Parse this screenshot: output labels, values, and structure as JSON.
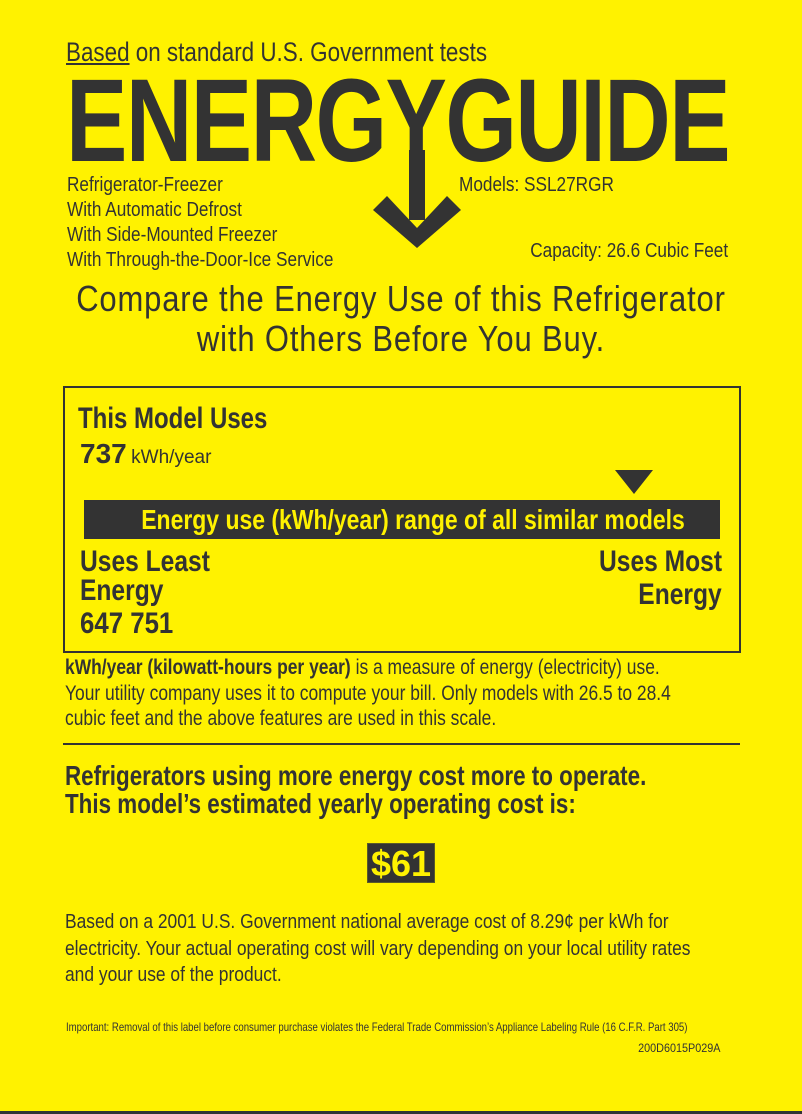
{
  "colors": {
    "background": "#fff200",
    "ink": "#333333"
  },
  "header": {
    "tests_prefix": "Based",
    "tests_rest": " on standard U.S. Government tests",
    "logo": "ENERGYGUIDE",
    "features": [
      "Refrigerator-Freezer",
      "With Automatic Defrost",
      "With Side-Mounted Freezer",
      "With Through-the-Door-Ice Service"
    ],
    "models": "Models:  SSL27RGR",
    "capacity": "Capacity: 26.6 Cubic Feet"
  },
  "compare": [
    "Compare the Energy Use of this Refrigerator",
    "with Others Before You Buy."
  ],
  "usage": {
    "title": "This Model Uses",
    "value": "737",
    "unit": "kWh/year",
    "range_label": "Energy use (kWh/year) range of all similar models",
    "least_label": [
      "Uses Least",
      "Energy"
    ],
    "most_label": [
      "Uses Most",
      "Energy"
    ],
    "range_values": "647 751",
    "range_min": 647,
    "range_max": 751,
    "model_value": 737
  },
  "explanation": {
    "bold": "kWh/year (kilowatt-hours per year)",
    "line1_rest": " is a measure of energy (electricity) use.",
    "line2": "Your utility company uses it to compute your bill. Only models with 26.5 to 28.4",
    "line3": "cubic feet and the above features are used in this scale."
  },
  "cost": {
    "heading": [
      "Refrigerators using more energy cost more to operate.",
      "This model’s estimated yearly operating cost is:"
    ],
    "value": "$61",
    "note": [
      "Based on a 2001 U.S. Government national average cost of 8.29¢ per kWh for",
      "electricity. Your actual operating cost will vary depending on your local utility rates",
      "and your use of the product."
    ]
  },
  "footer": {
    "important": "Important: Removal of this label before consumer purchase violates the Federal Trade Commission’s Appliance Labeling Rule (16 C.F.R. Part 305)",
    "code": "200D6015P029A"
  }
}
